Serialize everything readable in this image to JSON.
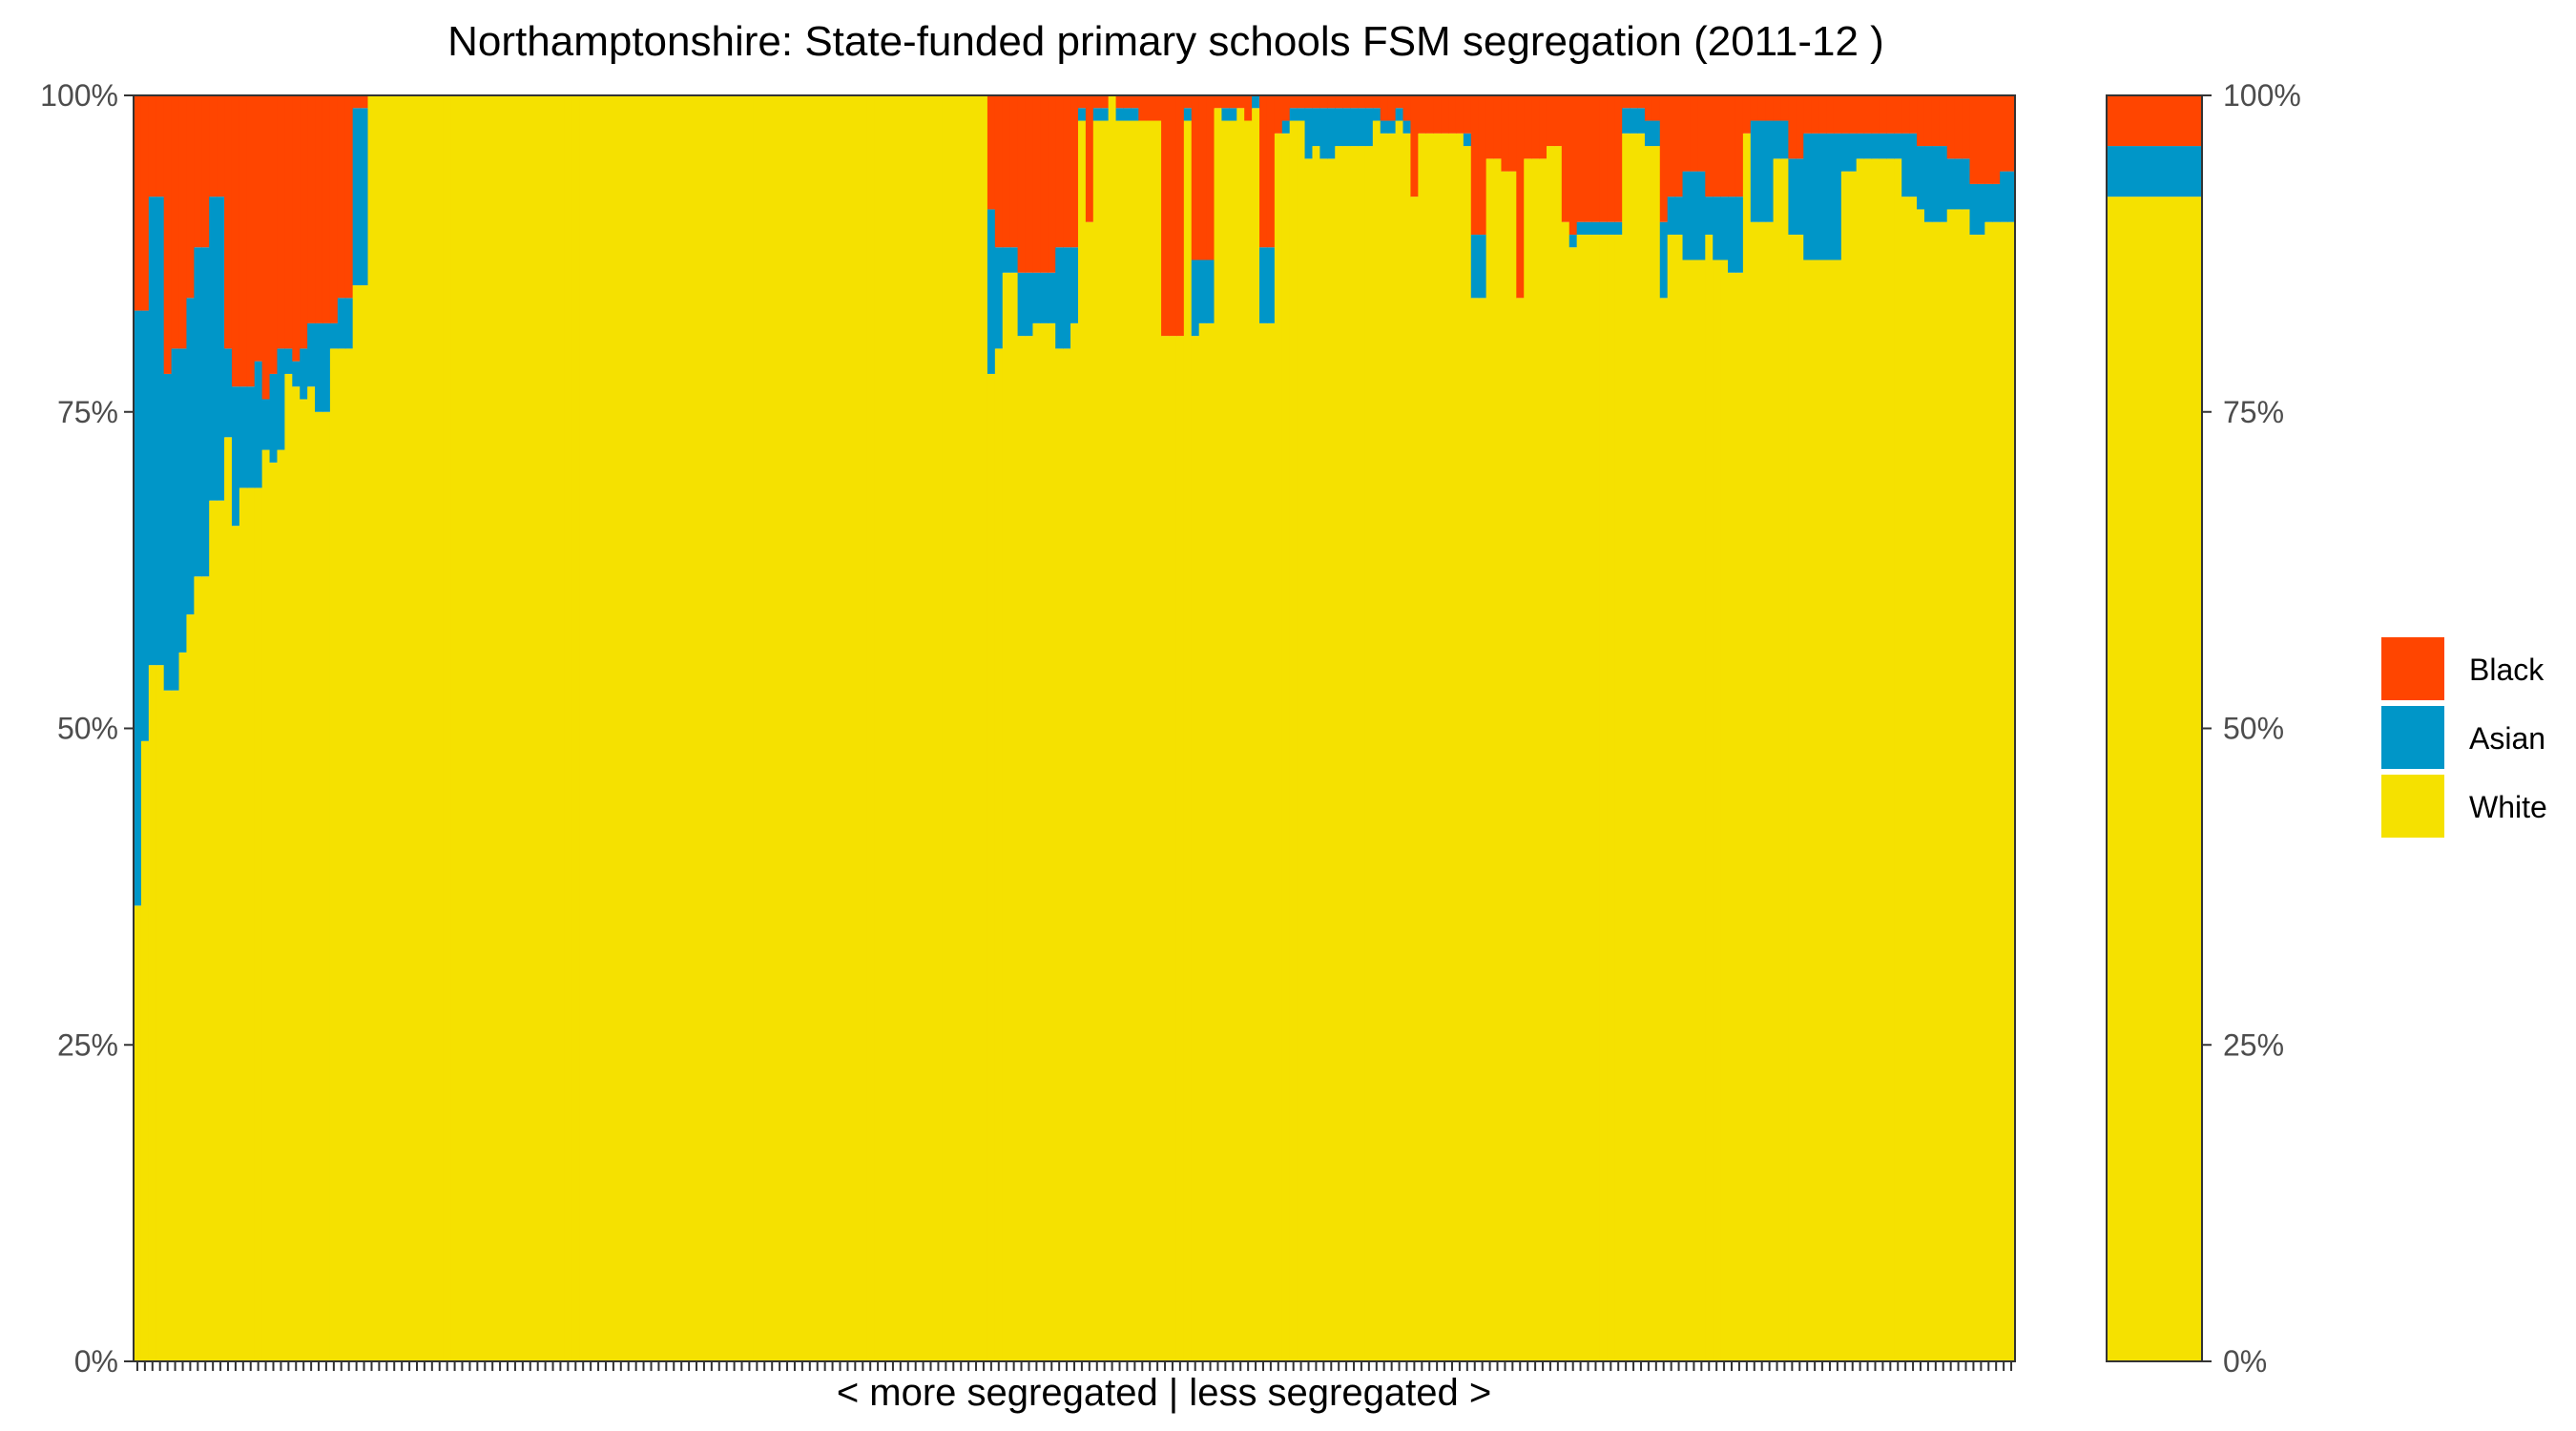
{
  "chart_data": {
    "type": "bar",
    "stacked": true,
    "percent_scale": true,
    "title": "Northamptonshire: State-funded primary schools FSM segregation (2011-12 )",
    "xlabel": "< more segregated | less segregated >",
    "ylabel": "",
    "ylim": [
      0,
      100
    ],
    "y_ticks": [
      "0%",
      "25%",
      "50%",
      "75%",
      "100%"
    ],
    "y_axis_both_sides": true,
    "grid": false,
    "legend_position": "right",
    "colors": {
      "Black": "#ff4500",
      "Asian": "#0096c8",
      "White": "#f5e100"
    },
    "series": [
      {
        "name": "White",
        "values": [
          36,
          49,
          55,
          55,
          53,
          53,
          56,
          59,
          62,
          62,
          68,
          68,
          73,
          66,
          69,
          69,
          69,
          72,
          71,
          72,
          78,
          77,
          76,
          77,
          75,
          75,
          80,
          80,
          80,
          85,
          85,
          100,
          100,
          100,
          100,
          100,
          100,
          100,
          100,
          100,
          100,
          100,
          100,
          100,
          100,
          100,
          100,
          100,
          100,
          100,
          100,
          100,
          100,
          100,
          100,
          100,
          100,
          100,
          100,
          100,
          100,
          100,
          100,
          100,
          100,
          100,
          100,
          100,
          100,
          100,
          100,
          100,
          100,
          100,
          100,
          100,
          100,
          100,
          100,
          100,
          100,
          100,
          100,
          100,
          100,
          100,
          100,
          100,
          100,
          100,
          100,
          100,
          100,
          100,
          100,
          100,
          100,
          100,
          100,
          100,
          100,
          100,
          100,
          100,
          100,
          100,
          100,
          100,
          100,
          100,
          100,
          100,
          100,
          78,
          80,
          86,
          86,
          81,
          81,
          82,
          82,
          82,
          80,
          80,
          82,
          98,
          90,
          98,
          98,
          100,
          98,
          98,
          98,
          98,
          98,
          98,
          81,
          81,
          81,
          98,
          81,
          82,
          82,
          99,
          98,
          98,
          99,
          98,
          99,
          82,
          82,
          97,
          97,
          98,
          98,
          95,
          96,
          95,
          95,
          96,
          96,
          96,
          96,
          96,
          98,
          97,
          97,
          98,
          97,
          92,
          97,
          97,
          97,
          97,
          97,
          97,
          96,
          84,
          84,
          95,
          95,
          94,
          94,
          84,
          95,
          95,
          95,
          96,
          96,
          90,
          88,
          89,
          89,
          89,
          89,
          89,
          89,
          97,
          97,
          97,
          96,
          96,
          84,
          89,
          89,
          87,
          87,
          87,
          89,
          87,
          87,
          86,
          86,
          97,
          90,
          90,
          90,
          95,
          95,
          89,
          89,
          87,
          87,
          87,
          87,
          87,
          94,
          94,
          95,
          95,
          95,
          95,
          95,
          95,
          92,
          92,
          91,
          90,
          90,
          90,
          91,
          91,
          91,
          89,
          89,
          90,
          90,
          90,
          90
        ],
        "overall": 92
      },
      {
        "name": "Asian",
        "values": [
          47,
          34,
          37,
          37,
          25,
          27,
          24,
          25,
          26,
          26,
          24,
          24,
          7,
          11,
          8,
          8,
          10,
          4,
          7,
          8,
          2,
          2,
          4,
          5,
          7,
          7,
          2,
          4,
          4,
          14,
          14,
          0,
          0,
          0,
          0,
          0,
          0,
          0,
          0,
          0,
          0,
          0,
          0,
          0,
          0,
          0,
          0,
          0,
          0,
          0,
          0,
          0,
          0,
          0,
          0,
          0,
          0,
          0,
          0,
          0,
          0,
          0,
          0,
          0,
          0,
          0,
          0,
          0,
          0,
          0,
          0,
          0,
          0,
          0,
          0,
          0,
          0,
          0,
          0,
          0,
          0,
          0,
          0,
          0,
          0,
          0,
          0,
          0,
          0,
          0,
          0,
          0,
          0,
          0,
          0,
          0,
          0,
          0,
          0,
          0,
          0,
          0,
          0,
          0,
          0,
          0,
          0,
          0,
          0,
          0,
          0,
          0,
          0,
          13,
          8,
          2,
          2,
          5,
          5,
          4,
          4,
          4,
          8,
          8,
          6,
          1,
          0,
          1,
          1,
          0,
          1,
          1,
          1,
          0,
          0,
          0,
          0,
          0,
          0,
          1,
          6,
          5,
          5,
          0,
          1,
          1,
          0,
          0,
          1,
          6,
          6,
          0,
          1,
          1,
          1,
          4,
          3,
          4,
          4,
          3,
          3,
          3,
          3,
          3,
          1,
          1,
          1,
          1,
          1,
          0,
          0,
          0,
          0,
          0,
          0,
          0,
          1,
          5,
          5,
          0,
          0,
          0,
          0,
          0,
          0,
          0,
          0,
          0,
          0,
          0,
          1,
          1,
          1,
          1,
          1,
          1,
          1,
          2,
          2,
          2,
          2,
          2,
          6,
          3,
          3,
          7,
          7,
          7,
          3,
          5,
          5,
          6,
          6,
          0,
          8,
          8,
          8,
          3,
          3,
          6,
          6,
          10,
          10,
          10,
          10,
          10,
          3,
          3,
          2,
          2,
          2,
          2,
          2,
          2,
          5,
          5,
          5,
          6,
          6,
          6,
          4,
          4,
          4,
          4,
          4,
          3,
          3,
          4,
          4
        ],
        "overall": 4
      },
      {
        "name": "Black",
        "values": [
          17,
          17,
          8,
          8,
          22,
          20,
          20,
          16,
          12,
          12,
          8,
          8,
          20,
          23,
          23,
          23,
          21,
          24,
          22,
          20,
          20,
          21,
          20,
          18,
          18,
          18,
          18,
          16,
          16,
          1,
          1,
          0,
          0,
          0,
          0,
          0,
          0,
          0,
          0,
          0,
          0,
          0,
          0,
          0,
          0,
          0,
          0,
          0,
          0,
          0,
          0,
          0,
          0,
          0,
          0,
          0,
          0,
          0,
          0,
          0,
          0,
          0,
          0,
          0,
          0,
          0,
          0,
          0,
          0,
          0,
          0,
          0,
          0,
          0,
          0,
          0,
          0,
          0,
          0,
          0,
          0,
          0,
          0,
          0,
          0,
          0,
          0,
          0,
          0,
          0,
          0,
          0,
          0,
          0,
          0,
          0,
          0,
          0,
          0,
          0,
          0,
          0,
          0,
          0,
          0,
          0,
          0,
          0,
          0,
          0,
          0,
          0,
          0,
          9,
          12,
          12,
          12,
          14,
          14,
          14,
          14,
          14,
          12,
          12,
          12,
          1,
          10,
          1,
          1,
          0,
          1,
          1,
          1,
          2,
          2,
          2,
          19,
          19,
          19,
          1,
          13,
          13,
          13,
          1,
          1,
          1,
          1,
          2,
          0,
          12,
          12,
          3,
          2,
          1,
          1,
          1,
          1,
          1,
          1,
          1,
          1,
          1,
          1,
          1,
          1,
          2,
          2,
          1,
          2,
          8,
          3,
          3,
          3,
          3,
          3,
          3,
          3,
          11,
          11,
          5,
          5,
          6,
          6,
          16,
          5,
          5,
          5,
          4,
          4,
          10,
          11,
          10,
          10,
          10,
          10,
          10,
          10,
          1,
          1,
          1,
          2,
          2,
          10,
          8,
          8,
          6,
          6,
          6,
          8,
          8,
          8,
          8,
          8,
          3,
          2,
          2,
          2,
          2,
          2,
          5,
          5,
          3,
          3,
          3,
          3,
          3,
          3,
          3,
          3,
          3,
          3,
          3,
          3,
          3,
          3,
          3,
          4,
          4,
          4,
          4,
          5,
          5,
          5,
          7,
          7,
          7,
          7,
          6,
          6
        ],
        "overall": 4
      }
    ]
  }
}
